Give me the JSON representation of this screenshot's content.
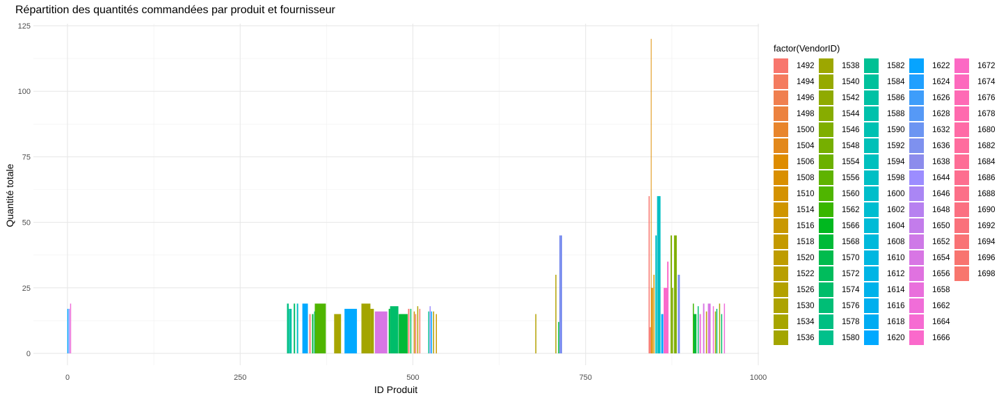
{
  "chart_data": {
    "type": "bar",
    "title": "Répartition des quantités commandées par produit et fournisseur",
    "xlabel": "ID Produit",
    "ylabel": "Quantité totale",
    "xlim": [
      -10,
      1000
    ],
    "ylim": [
      0,
      125
    ],
    "x_ticks": [
      0,
      250,
      500,
      750,
      1000
    ],
    "y_ticks": [
      0,
      25,
      50,
      75,
      100,
      125
    ],
    "grid": true,
    "legend": {
      "title": "factor(VendorID)",
      "placement": "right",
      "entries": [
        {
          "label": "1492",
          "color": "#F8766D"
        },
        {
          "label": "1494",
          "color": "#F47B5F"
        },
        {
          "label": "1496",
          "color": "#F07F4F"
        },
        {
          "label": "1498",
          "color": "#EC823F"
        },
        {
          "label": "1500",
          "color": "#E8852C"
        },
        {
          "label": "1504",
          "color": "#E3881A"
        },
        {
          "label": "1506",
          "color": "#DE8C00"
        },
        {
          "label": "1508",
          "color": "#D98F00"
        },
        {
          "label": "1510",
          "color": "#D49200"
        },
        {
          "label": "1514",
          "color": "#CF9500"
        },
        {
          "label": "1516",
          "color": "#C99800"
        },
        {
          "label": "1518",
          "color": "#C49A00"
        },
        {
          "label": "1520",
          "color": "#BE9C00"
        },
        {
          "label": "1522",
          "color": "#B89F00"
        },
        {
          "label": "1526",
          "color": "#B3A100"
        },
        {
          "label": "1530",
          "color": "#ADA300"
        },
        {
          "label": "1534",
          "color": "#A7A500"
        },
        {
          "label": "1536",
          "color": "#A3A500"
        },
        {
          "label": "1538",
          "color": "#9DA700"
        },
        {
          "label": "1540",
          "color": "#96A900"
        },
        {
          "label": "1542",
          "color": "#8FAA00"
        },
        {
          "label": "1544",
          "color": "#87AC00"
        },
        {
          "label": "1546",
          "color": "#7FAE00"
        },
        {
          "label": "1548",
          "color": "#76AF00"
        },
        {
          "label": "1554",
          "color": "#6CB100"
        },
        {
          "label": "1556",
          "color": "#5FB300"
        },
        {
          "label": "1560",
          "color": "#4FB500"
        },
        {
          "label": "1562",
          "color": "#39B600"
        },
        {
          "label": "1566",
          "color": "#00B81F"
        },
        {
          "label": "1568",
          "color": "#00BA38"
        },
        {
          "label": "1570",
          "color": "#00BB4D"
        },
        {
          "label": "1572",
          "color": "#00BC5C"
        },
        {
          "label": "1574",
          "color": "#00BD6A"
        },
        {
          "label": "1576",
          "color": "#00BE76"
        },
        {
          "label": "1578",
          "color": "#00BF82"
        },
        {
          "label": "1580",
          "color": "#00C08B"
        },
        {
          "label": "1582",
          "color": "#00C094"
        },
        {
          "label": "1584",
          "color": "#00C19C"
        },
        {
          "label": "1586",
          "color": "#00C1A4"
        },
        {
          "label": "1588",
          "color": "#00C1AB"
        },
        {
          "label": "1590",
          "color": "#00C1B2"
        },
        {
          "label": "1592",
          "color": "#00C0B8"
        },
        {
          "label": "1594",
          "color": "#00C0BE"
        },
        {
          "label": "1598",
          "color": "#00BFC4"
        },
        {
          "label": "1600",
          "color": "#00BECA"
        },
        {
          "label": "1602",
          "color": "#00BDD0"
        },
        {
          "label": "1604",
          "color": "#00BBD6"
        },
        {
          "label": "1608",
          "color": "#00B9DB"
        },
        {
          "label": "1610",
          "color": "#00B7E0"
        },
        {
          "label": "1612",
          "color": "#00B5E5"
        },
        {
          "label": "1614",
          "color": "#00B2EA"
        },
        {
          "label": "1616",
          "color": "#00AFEE"
        },
        {
          "label": "1618",
          "color": "#00ACF2"
        },
        {
          "label": "1620",
          "color": "#00A9FF"
        },
        {
          "label": "1622",
          "color": "#06A4FF"
        },
        {
          "label": "1624",
          "color": "#20A0FF"
        },
        {
          "label": "1626",
          "color": "#3E9DFA"
        },
        {
          "label": "1628",
          "color": "#5699F6"
        },
        {
          "label": "1632",
          "color": "#6C95F2"
        },
        {
          "label": "1636",
          "color": "#7E91EF"
        },
        {
          "label": "1638",
          "color": "#8C8CEC"
        },
        {
          "label": "1644",
          "color": "#9C8DFF"
        },
        {
          "label": "1646",
          "color": "#AA86F4"
        },
        {
          "label": "1648",
          "color": "#B781F0"
        },
        {
          "label": "1650",
          "color": "#C37CEB"
        },
        {
          "label": "1652",
          "color": "#CE79E7"
        },
        {
          "label": "1654",
          "color": "#D876E4"
        },
        {
          "label": "1656",
          "color": "#E072E0"
        },
        {
          "label": "1658",
          "color": "#E96FDC"
        },
        {
          "label": "1662",
          "color": "#F06DD8"
        },
        {
          "label": "1664",
          "color": "#F66BD2"
        },
        {
          "label": "1666",
          "color": "#FA69CB"
        },
        {
          "label": "1672",
          "color": "#FC69C4"
        },
        {
          "label": "1674",
          "color": "#FD69BD"
        },
        {
          "label": "1676",
          "color": "#FE6AB5"
        },
        {
          "label": "1678",
          "color": "#FF6AAE"
        },
        {
          "label": "1680",
          "color": "#FF6BA6"
        },
        {
          "label": "1682",
          "color": "#FF6C9E"
        },
        {
          "label": "1684",
          "color": "#FE6D96"
        },
        {
          "label": "1686",
          "color": "#FD6E8F"
        },
        {
          "label": "1688",
          "color": "#FC6F88"
        },
        {
          "label": "1690",
          "color": "#FB7081"
        },
        {
          "label": "1692",
          "color": "#FA717B"
        },
        {
          "label": "1694",
          "color": "#F97275"
        },
        {
          "label": "1696",
          "color": "#F8746F"
        },
        {
          "label": "1698",
          "color": "#F8766D"
        }
      ]
    },
    "bars": [
      {
        "x": 0.5,
        "width": 1.5,
        "value": 17,
        "color": "#00A9FF"
      },
      {
        "x": 2.5,
        "width": 1.5,
        "value": 17,
        "color": "#9C8DFF"
      },
      {
        "x": 4.5,
        "width": 1.5,
        "value": 19,
        "color": "#F06DD8"
      },
      {
        "x": 319,
        "width": 2.5,
        "value": 19,
        "color": "#00BF82"
      },
      {
        "x": 322.5,
        "width": 4,
        "value": 17,
        "color": "#00C1A4"
      },
      {
        "x": 328.5,
        "width": 2,
        "value": 19,
        "color": "#00BD6A"
      },
      {
        "x": 333,
        "width": 2,
        "value": 19,
        "color": "#00BFC4"
      },
      {
        "x": 344,
        "width": 8,
        "value": 19,
        "color": "#00A9FF"
      },
      {
        "x": 351,
        "width": 2,
        "value": 15,
        "color": "#F8766D"
      },
      {
        "x": 355,
        "width": 2,
        "value": 15,
        "color": "#00BA38"
      },
      {
        "x": 358,
        "width": 2,
        "value": 16,
        "color": "#00C094"
      },
      {
        "x": 366,
        "width": 16,
        "value": 19,
        "color": "#4FB500"
      },
      {
        "x": 391,
        "width": 10,
        "value": 15,
        "color": "#A7A500"
      },
      {
        "x": 410,
        "width": 18,
        "value": 17,
        "color": "#00A9FF"
      },
      {
        "x": 432,
        "width": 13,
        "value": 19,
        "color": "#A3A500"
      },
      {
        "x": 441,
        "width": 5,
        "value": 17,
        "color": "#A3A500"
      },
      {
        "x": 454,
        "width": 18,
        "value": 16,
        "color": "#D876E4"
      },
      {
        "x": 466,
        "width": 2,
        "value": 17,
        "color": "#00BA38"
      },
      {
        "x": 473,
        "width": 12,
        "value": 18,
        "color": "#00BD6A"
      },
      {
        "x": 486,
        "width": 13,
        "value": 15,
        "color": "#00BA38"
      },
      {
        "x": 494,
        "width": 2,
        "value": 17,
        "color": "#F8766D"
      },
      {
        "x": 497,
        "width": 1.5,
        "value": 17,
        "color": "#00BD6A"
      },
      {
        "x": 502,
        "width": 1.5,
        "value": 16,
        "color": "#C99800"
      },
      {
        "x": 504,
        "width": 1.5,
        "value": 15,
        "color": "#F8766D"
      },
      {
        "x": 507,
        "width": 1.5,
        "value": 18,
        "color": "#B3A100"
      },
      {
        "x": 510,
        "width": 1.5,
        "value": 17,
        "color": "#F8766D"
      },
      {
        "x": 523,
        "width": 1.5,
        "value": 16,
        "color": "#00C094"
      },
      {
        "x": 525,
        "width": 1.5,
        "value": 18,
        "color": "#9C8DFF"
      },
      {
        "x": 527,
        "width": 1.5,
        "value": 16,
        "color": "#00A9FF"
      },
      {
        "x": 530,
        "width": 1.5,
        "value": 16,
        "color": "#B89F00"
      },
      {
        "x": 534,
        "width": 1.5,
        "value": 15,
        "color": "#C99800"
      },
      {
        "x": 678,
        "width": 1.5,
        "value": 15,
        "color": "#B3A100"
      },
      {
        "x": 707,
        "width": 1.5,
        "value": 30,
        "color": "#B3A100"
      },
      {
        "x": 711,
        "width": 1.5,
        "value": 12,
        "color": "#00BA38"
      },
      {
        "x": 714,
        "width": 4,
        "value": 45,
        "color": "#7E91EF"
      },
      {
        "x": 842,
        "width": 1.5,
        "value": 60,
        "color": "#F8766D"
      },
      {
        "x": 843.5,
        "width": 1.5,
        "value": 10,
        "color": "#F8766D"
      },
      {
        "x": 845,
        "width": 1,
        "value": 120,
        "color": "#DE8C00"
      },
      {
        "x": 846.5,
        "width": 2,
        "value": 25,
        "color": "#DE8C00"
      },
      {
        "x": 849,
        "width": 1.5,
        "value": 30,
        "color": "#C99800"
      },
      {
        "x": 852,
        "width": 2,
        "value": 45,
        "color": "#00BFC4"
      },
      {
        "x": 856,
        "width": 5,
        "value": 60,
        "color": "#00BFC4"
      },
      {
        "x": 861,
        "width": 3,
        "value": 15,
        "color": "#00A9FF"
      },
      {
        "x": 866,
        "width": 6,
        "value": 25,
        "color": "#FA69CB"
      },
      {
        "x": 869,
        "width": 2,
        "value": 35,
        "color": "#FA69CB"
      },
      {
        "x": 874,
        "width": 2,
        "value": 45,
        "color": "#7FAE00"
      },
      {
        "x": 876,
        "width": 1.5,
        "value": 25,
        "color": "#7FAE00"
      },
      {
        "x": 880,
        "width": 4,
        "value": 45,
        "color": "#7FAE00"
      },
      {
        "x": 885,
        "width": 3,
        "value": 30,
        "color": "#7E91EF"
      },
      {
        "x": 906,
        "width": 1.5,
        "value": 19,
        "color": "#39B600"
      },
      {
        "x": 908.5,
        "width": 4,
        "value": 15,
        "color": "#00BA38"
      },
      {
        "x": 913,
        "width": 1.5,
        "value": 18,
        "color": "#00BD6A"
      },
      {
        "x": 916,
        "width": 2,
        "value": 15,
        "color": "#F06DD8"
      },
      {
        "x": 921,
        "width": 2,
        "value": 19,
        "color": "#D876E4"
      },
      {
        "x": 925,
        "width": 1.5,
        "value": 16,
        "color": "#B89F00"
      },
      {
        "x": 929,
        "width": 4,
        "value": 19,
        "color": "#D876E4"
      },
      {
        "x": 935,
        "width": 1.5,
        "value": 18,
        "color": "#F06DD8"
      },
      {
        "x": 938,
        "width": 1.5,
        "value": 16,
        "color": "#A3A500"
      },
      {
        "x": 940,
        "width": 1.5,
        "value": 17,
        "color": "#00BD6A"
      },
      {
        "x": 944,
        "width": 1.5,
        "value": 19,
        "color": "#A3A500"
      },
      {
        "x": 947,
        "width": 1.5,
        "value": 15,
        "color": "#00BD6A"
      },
      {
        "x": 951,
        "width": 1.5,
        "value": 19,
        "color": "#F06DD8"
      }
    ]
  }
}
